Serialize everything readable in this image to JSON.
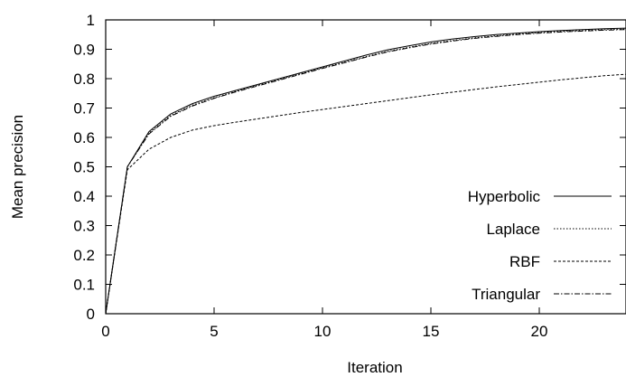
{
  "chart_data": {
    "type": "line",
    "title": "",
    "xlabel": "Iteration",
    "ylabel": "Mean precision",
    "xlim": [
      0,
      24
    ],
    "ylim": [
      0,
      1
    ],
    "x_ticks": [
      0,
      5,
      10,
      15,
      20
    ],
    "x_tick_labels": [
      "0",
      "5",
      "10",
      "15",
      "20"
    ],
    "y_ticks": [
      0,
      0.1,
      0.2,
      0.3,
      0.4,
      0.5,
      0.6,
      0.7,
      0.8,
      0.9,
      1
    ],
    "y_tick_labels": [
      "0",
      "0.1",
      "0.2",
      "0.3",
      "0.4",
      "0.5",
      "0.6",
      "0.7",
      "0.8",
      "0.9",
      "1"
    ],
    "grid": false,
    "legend_position": "bottom-right",
    "x": [
      0,
      1,
      2,
      3,
      4,
      5,
      6,
      7,
      8,
      9,
      10,
      11,
      12,
      13,
      14,
      15,
      16,
      17,
      18,
      19,
      20,
      21,
      22,
      23,
      24
    ],
    "series": [
      {
        "name": "Hyperbolic",
        "dash": "",
        "values": [
          0.0,
          0.5,
          0.62,
          0.68,
          0.715,
          0.74,
          0.76,
          0.78,
          0.8,
          0.82,
          0.84,
          0.86,
          0.88,
          0.898,
          0.912,
          0.925,
          0.935,
          0.943,
          0.95,
          0.955,
          0.96,
          0.964,
          0.967,
          0.97,
          0.972
        ]
      },
      {
        "name": "Laplace",
        "dash": "1.5,2",
        "values": [
          0.0,
          0.5,
          0.615,
          0.675,
          0.71,
          0.735,
          0.757,
          0.777,
          0.797,
          0.817,
          0.837,
          0.856,
          0.875,
          0.893,
          0.907,
          0.92,
          0.93,
          0.939,
          0.946,
          0.952,
          0.957,
          0.961,
          0.964,
          0.967,
          0.969
        ]
      },
      {
        "name": "RBF",
        "dash": "3,2",
        "values": [
          0.0,
          0.49,
          0.56,
          0.6,
          0.625,
          0.64,
          0.652,
          0.663,
          0.674,
          0.685,
          0.695,
          0.705,
          0.715,
          0.725,
          0.735,
          0.745,
          0.754,
          0.763,
          0.772,
          0.78,
          0.788,
          0.796,
          0.803,
          0.81,
          0.815
        ]
      },
      {
        "name": "Triangular",
        "dash": "6,2,1.5,2",
        "values": [
          0.0,
          0.5,
          0.612,
          0.672,
          0.707,
          0.733,
          0.755,
          0.775,
          0.795,
          0.815,
          0.835,
          0.854,
          0.873,
          0.891,
          0.905,
          0.918,
          0.928,
          0.937,
          0.944,
          0.95,
          0.955,
          0.959,
          0.962,
          0.965,
          0.967
        ]
      }
    ]
  }
}
